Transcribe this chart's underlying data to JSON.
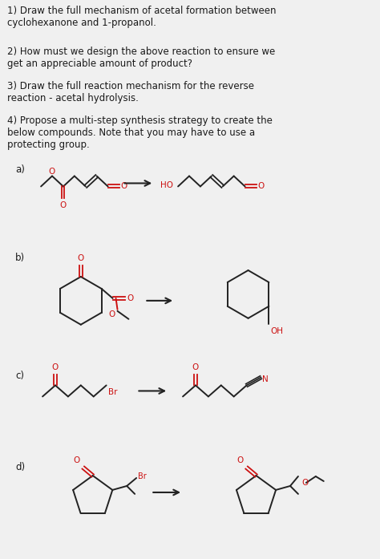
{
  "background_color": "#f0f0f0",
  "text_color": "#1a1a1a",
  "red_color": "#cc1111",
  "bond_color": "#222222",
  "q1": "1) Draw the full mechanism of acetal formation between\ncyclohexanone and 1-propanol.",
  "q2": "2) How must we design the above reaction to ensure we\nget an appreciable amount of product?",
  "q3": "3) Draw the full reaction mechanism for the reverse\nreaction - acetal hydrolysis.",
  "q4": "4) Propose a multi-step synthesis strategy to create the\nbelow compounds. Note that you may have to use a\nprotecting group.",
  "label_a": "a)",
  "label_b": "b)",
  "label_c": "c)",
  "label_d": "d)"
}
